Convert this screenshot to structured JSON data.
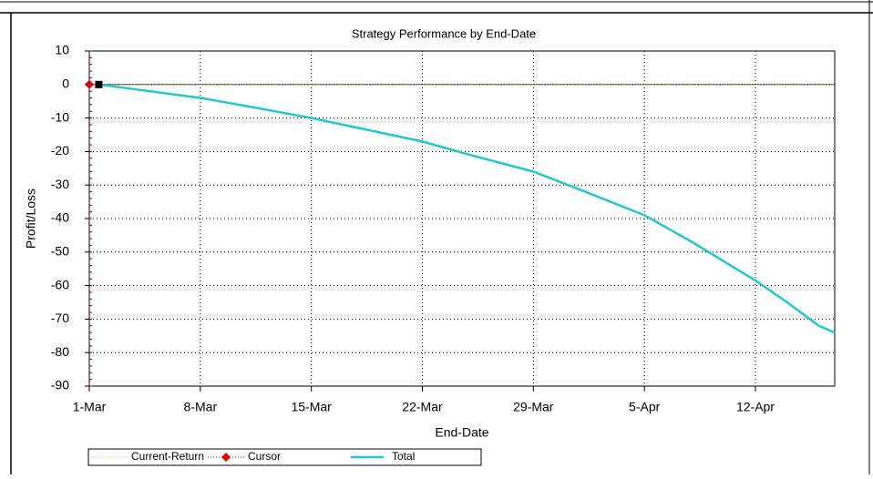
{
  "chart_data": {
    "type": "line",
    "title": "Strategy Performance by End-Date",
    "x_label": "End-Date",
    "y_label": "Profit/Loss",
    "xlim": [
      0,
      47
    ],
    "ylim": [
      -90,
      10
    ],
    "xticks": [
      {
        "value": 0,
        "label": "1-Mar"
      },
      {
        "value": 7,
        "label": "8-Mar"
      },
      {
        "value": 14,
        "label": "15-Mar"
      },
      {
        "value": 21,
        "label": "22-Mar"
      },
      {
        "value": 28,
        "label": "29-Mar"
      },
      {
        "value": 35,
        "label": "5-Apr"
      },
      {
        "value": 42,
        "label": "12-Apr"
      }
    ],
    "yticks": [
      -90,
      -80,
      -70,
      -60,
      -50,
      -40,
      -30,
      -20,
      -10,
      0,
      10
    ],
    "grid": true,
    "series": [
      {
        "name": "Current-Return",
        "color": "#f0a030",
        "style": "dotted",
        "x": [
          0,
          47
        ],
        "values": [
          0,
          0
        ]
      },
      {
        "name": "Cursor",
        "color": "#e00000",
        "style": "marker",
        "x": [
          0
        ],
        "values": [
          0
        ]
      },
      {
        "name": "Total",
        "color": "#22c8c8",
        "style": "line",
        "x": [
          0.6,
          3,
          7,
          10,
          14,
          17,
          21,
          24,
          28,
          31,
          35,
          38,
          42,
          44,
          46,
          47
        ],
        "values": [
          0,
          -1.5,
          -4,
          -6.5,
          -10,
          -13,
          -17,
          -21,
          -26,
          -31.5,
          -39,
          -47,
          -58.5,
          -65,
          -72,
          -74
        ]
      }
    ]
  }
}
